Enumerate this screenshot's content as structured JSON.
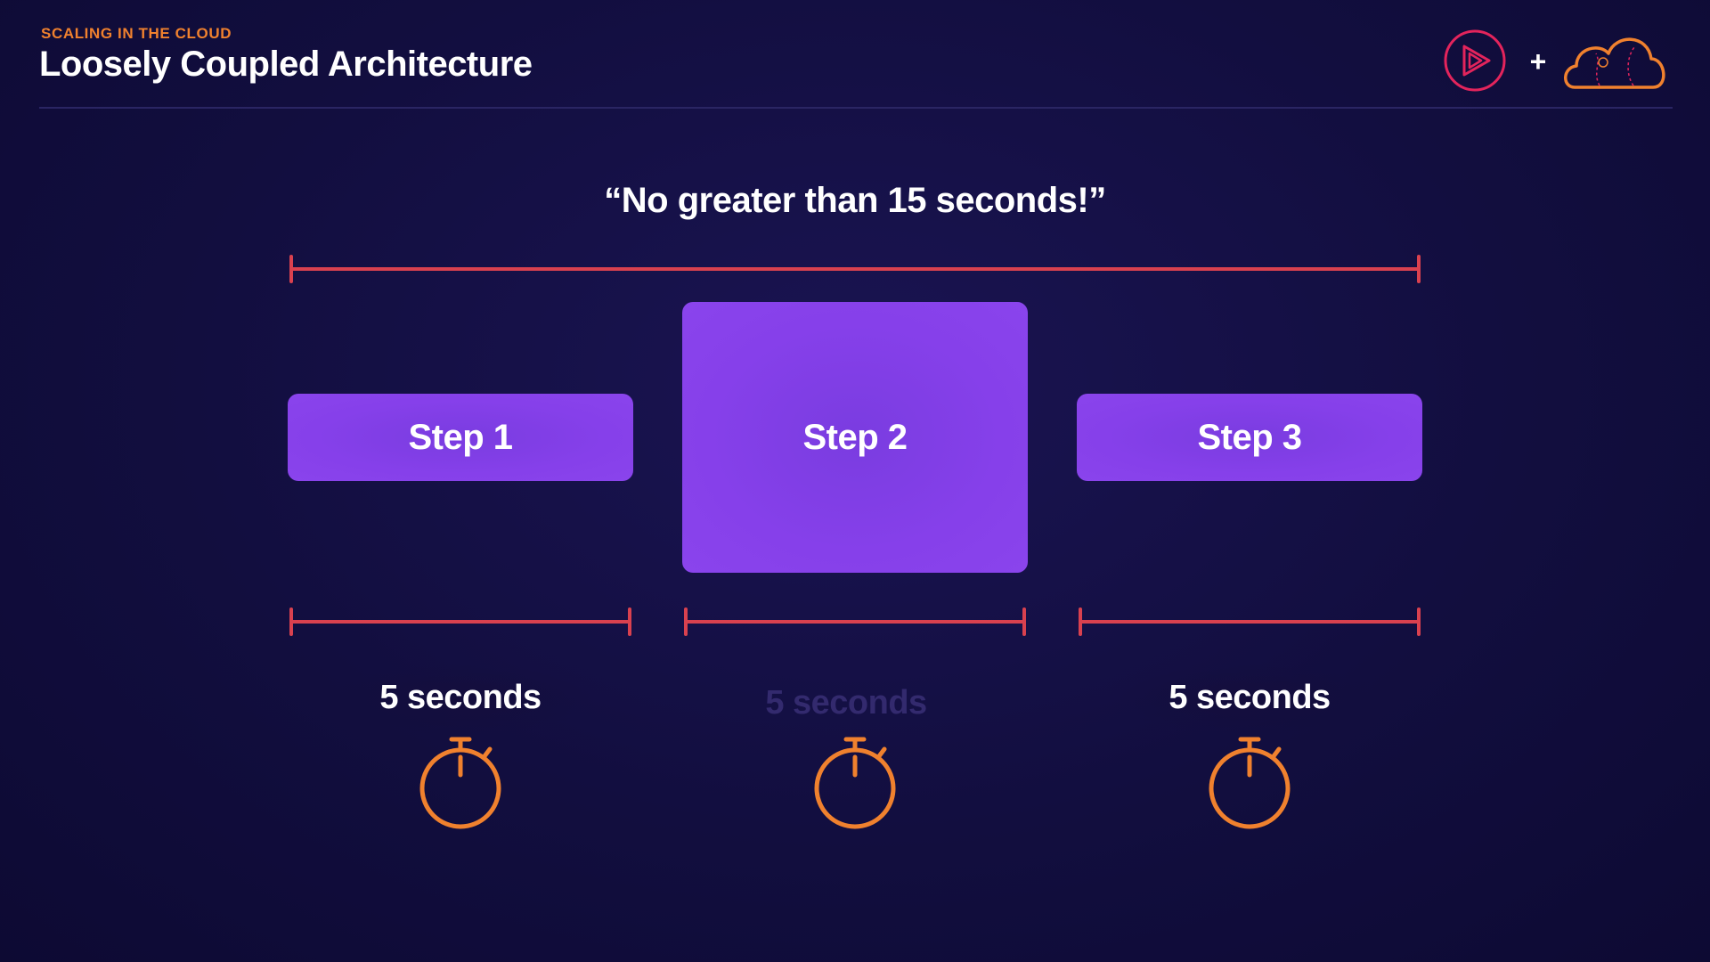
{
  "header": {
    "section": "SCALING IN THE CLOUD",
    "title": "Loosely Coupled Architecture"
  },
  "icons": {
    "play_logo": "play-circle-icon",
    "plus": "+",
    "cloud_logo": "cloud-icon"
  },
  "diagram": {
    "quote": "“No greater than 15 seconds!”",
    "steps": [
      {
        "label": "Step 1",
        "duration": "5 seconds"
      },
      {
        "label": "Step 2",
        "duration": "5 seconds"
      },
      {
        "label": "Step 3",
        "duration": "5 seconds"
      }
    ]
  },
  "colors": {
    "accent_orange": "#f0812e",
    "step_purple": "#8640ea",
    "bracket_red": "#d9414f",
    "background": "#120e3f",
    "logo_pink": "#e3245c"
  }
}
